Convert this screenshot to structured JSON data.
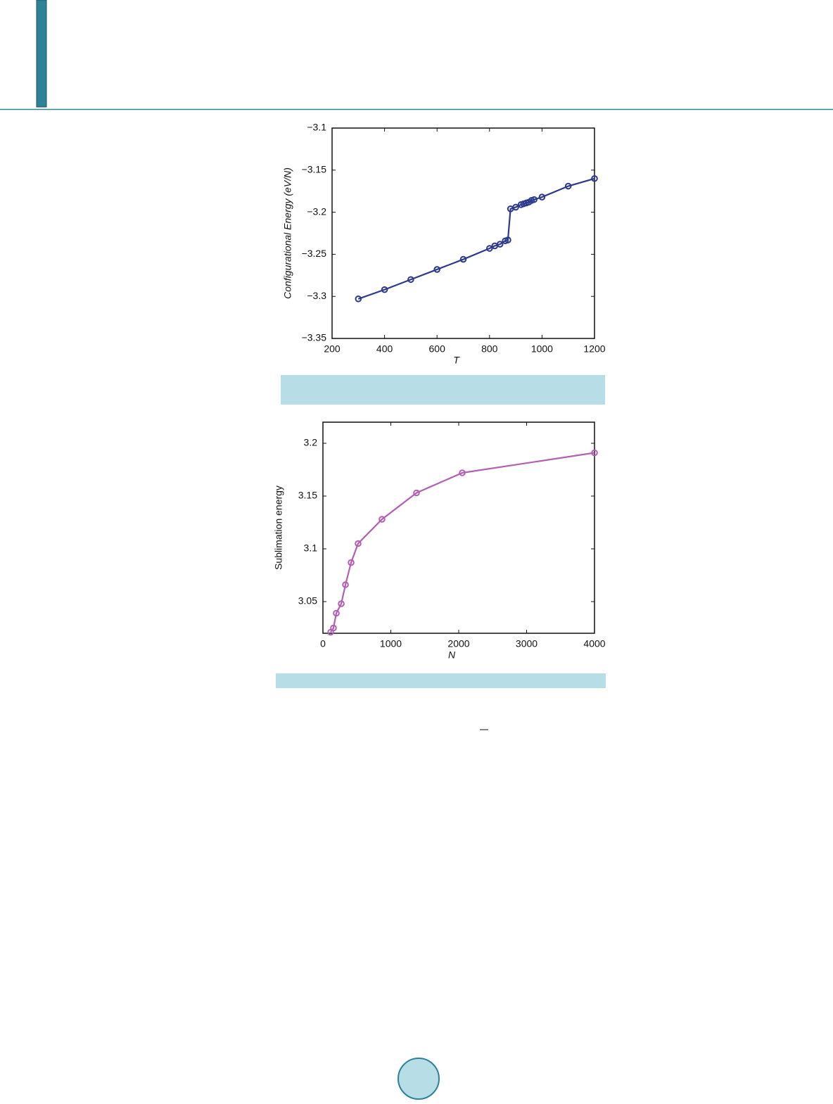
{
  "chart_data": [
    {
      "type": "line",
      "xlabel": "T",
      "ylabel": "Configurational Energy (eV/N)",
      "color": "#2e3a8c",
      "x": [
        300,
        400,
        500,
        600,
        700,
        800,
        820,
        840,
        860,
        870,
        880,
        900,
        920,
        930,
        940,
        950,
        960,
        970,
        1000,
        1100,
        1200
      ],
      "values": [
        -3.303,
        -3.292,
        -3.28,
        -3.268,
        -3.256,
        -3.243,
        -3.24,
        -3.238,
        -3.234,
        -3.233,
        -3.196,
        -3.194,
        -3.191,
        -3.19,
        -3.189,
        -3.188,
        -3.186,
        -3.185,
        -3.182,
        -3.169,
        -3.16
      ],
      "xlim": [
        200,
        1200
      ],
      "xticks": [
        200,
        400,
        600,
        800,
        1000,
        1200
      ],
      "ylim": [
        -3.35,
        -3.1
      ],
      "yticks": [
        {
          "value": -3.35,
          "label": "−3.35"
        },
        {
          "value": -3.3,
          "label": "−3.3"
        },
        {
          "value": -3.25,
          "label": "−3.25"
        },
        {
          "value": -3.2,
          "label": "−3.2"
        },
        {
          "value": -3.15,
          "label": "−3.15"
        },
        {
          "value": -3.1,
          "label": "−3.1"
        }
      ]
    },
    {
      "type": "line",
      "xlabel": "N",
      "ylabel": "Sublimation energy",
      "color": "#b35fb3",
      "x": [
        114,
        155,
        197,
        270,
        332,
        415,
        518,
        870,
        1378,
        2052,
        4000
      ],
      "values": [
        3.021,
        3.025,
        3.039,
        3.048,
        3.066,
        3.087,
        3.105,
        3.128,
        3.153,
        3.172,
        3.191
      ],
      "xlim": [
        0,
        4000
      ],
      "xticks": [
        0,
        1000,
        2000,
        3000,
        4000
      ],
      "ylim": [
        3.02,
        3.22
      ],
      "yticks": [
        3.05,
        3.1,
        3.15,
        3.2
      ]
    }
  ]
}
